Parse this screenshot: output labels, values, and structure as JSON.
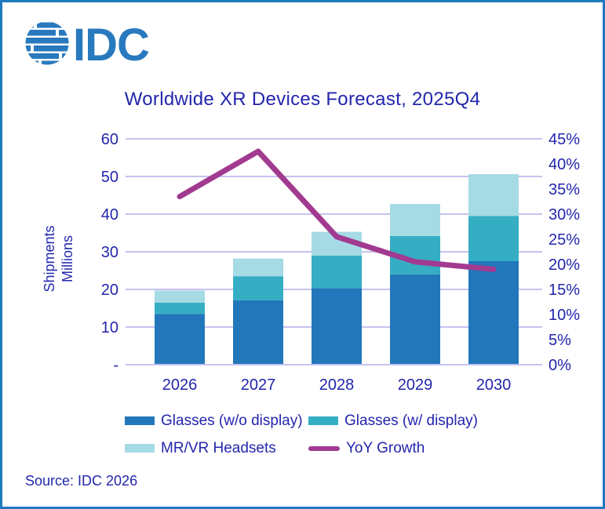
{
  "logo": {
    "text": "IDC",
    "icon": "striped-globe-icon",
    "color": "#2979BE"
  },
  "title": {
    "text": "Worldwide XR Devices Forecast, 2025Q4"
  },
  "y_axis_title": {
    "line1": "Shipments",
    "line2": "Millions"
  },
  "source": {
    "text": "Source: IDC 2026"
  },
  "colors": {
    "navy_text": "#2226AC",
    "gridline": "#C5C3F0",
    "border_blue": "#1E79BE",
    "logo_blue": "#2979BE",
    "bar_glasses_wo_display": "#2277BB",
    "bar_glasses_w_display": "#35AEC4",
    "bar_mrvr_headsets": "#A6DAE5",
    "line_yoy": "#A23A90"
  },
  "chart_data": {
    "type": "bar",
    "subtype": "stacked-bars-with-secondary-axis-line",
    "title": "Worldwide XR Devices Forecast, 2025Q4",
    "categories": [
      "2026",
      "2027",
      "2028",
      "2029",
      "2030"
    ],
    "series": [
      {
        "name": "Glasses (w/o display)",
        "type": "bar",
        "axis": "left",
        "color": "#2277BB",
        "values": [
          13.5,
          17.1,
          20.3,
          24.0,
          27.5
        ]
      },
      {
        "name": "Glasses (w/ display)",
        "type": "bar",
        "axis": "left",
        "color": "#35AEC4",
        "values": [
          3.0,
          6.4,
          8.7,
          10.2,
          12.0
        ]
      },
      {
        "name": "MR/VR Headsets",
        "type": "bar",
        "axis": "left",
        "color": "#A6DAE5",
        "values": [
          3.2,
          4.7,
          6.3,
          8.5,
          11.1
        ]
      },
      {
        "name": "YoY Growth",
        "type": "line",
        "axis": "right",
        "color": "#A23A90",
        "unit": "%",
        "values": [
          33.5,
          42.5,
          25.5,
          20.5,
          19.0
        ]
      }
    ],
    "stacked_totals": [
      19.7,
      28.2,
      35.3,
      42.7,
      50.6
    ],
    "left_axis": {
      "title": "Shipments Millions",
      "min": 0,
      "max": 60,
      "step": 10,
      "tick_labels": [
        "-",
        "10",
        "20",
        "30",
        "40",
        "50",
        "60"
      ]
    },
    "right_axis": {
      "min": 0,
      "max": 45,
      "step": 5,
      "tick_labels": [
        "0%",
        "5%",
        "10%",
        "15%",
        "20%",
        "25%",
        "30%",
        "35%",
        "40%",
        "45%"
      ]
    },
    "grid": true,
    "legend_position": "bottom"
  }
}
